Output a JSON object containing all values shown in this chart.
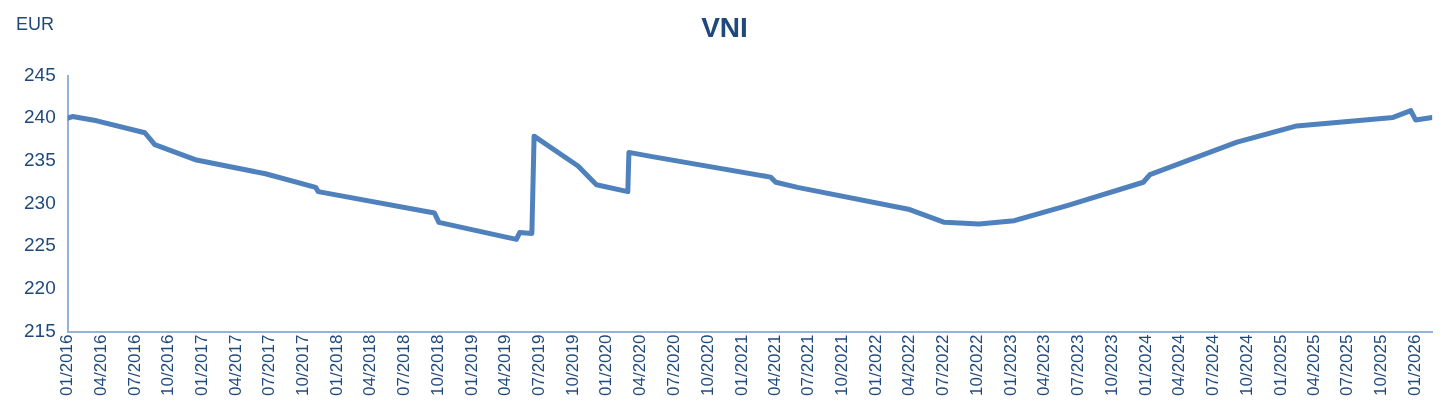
{
  "chart_data": {
    "type": "line",
    "title": "VNI",
    "ylabel": "EUR",
    "x": [
      "2016-01",
      "2016-01-14",
      "2016-03-20",
      "2016-07-28",
      "2016-08-24",
      "2016-12-15",
      "2017-06-20",
      "2017-11-03",
      "2017-11-10",
      "2018-09-21",
      "2018-10-03",
      "2019-05-01",
      "2019-05-10",
      "2019-06-12",
      "2019-06-18",
      "2019-10-15",
      "2019-12-04",
      "2020-02-27",
      "2020-03-01",
      "2020-05-03",
      "2021-03-20",
      "2021-04-03",
      "2021-06-01",
      "2022-04-01",
      "2022-07-04",
      "2022-10-06",
      "2023-01-09",
      "2023-06-04",
      "2023-12-25",
      "2024-01-12",
      "2024-09-04",
      "2025-02-13",
      "2025-11-01",
      "2025-12-19",
      "2026-01-01",
      "2026-02-15"
    ],
    "series": [
      {
        "color": "#4f81bd",
        "values": [
          240.0,
          240.2,
          239.7,
          238.3,
          236.9,
          235.1,
          233.5,
          231.9,
          231.4,
          228.9,
          227.8,
          225.8,
          226.6,
          226.5,
          237.9,
          234.4,
          232.2,
          231.4,
          236.0,
          235.5,
          233.1,
          232.5,
          231.9,
          229.3,
          227.8,
          227.6,
          228.0,
          229.8,
          232.5,
          233.4,
          237.2,
          239.1,
          240.1,
          240.9,
          239.8,
          240.1
        ]
      }
    ],
    "xlim": [
      "2016-01",
      "2026-02-15"
    ],
    "xticks": [
      {
        "value": "2016-01",
        "label": "01/2016"
      },
      {
        "value": "2016-04",
        "label": "04/2016"
      },
      {
        "value": "2016-07",
        "label": "07/2016"
      },
      {
        "value": "2016-10",
        "label": "10/2016"
      },
      {
        "value": "2017-01",
        "label": "01/2017"
      },
      {
        "value": "2017-04",
        "label": "04/2017"
      },
      {
        "value": "2017-07",
        "label": "07/2017"
      },
      {
        "value": "2017-10",
        "label": "10/2017"
      },
      {
        "value": "2018-01",
        "label": "01/2018"
      },
      {
        "value": "2018-04",
        "label": "04/2018"
      },
      {
        "value": "2018-07",
        "label": "07/2018"
      },
      {
        "value": "2018-10",
        "label": "10/2018"
      },
      {
        "value": "2019-01",
        "label": "01/2019"
      },
      {
        "value": "2019-04",
        "label": "04/2019"
      },
      {
        "value": "2019-07",
        "label": "07/2019"
      },
      {
        "value": "2019-10",
        "label": "10/2019"
      },
      {
        "value": "2020-01",
        "label": "01/2020"
      },
      {
        "value": "2020-04",
        "label": "04/2020"
      },
      {
        "value": "2020-07",
        "label": "07/2020"
      },
      {
        "value": "2020-10",
        "label": "10/2020"
      },
      {
        "value": "2021-01",
        "label": "01/2021"
      },
      {
        "value": "2021-04",
        "label": "04/2021"
      },
      {
        "value": "2021-07",
        "label": "07/2021"
      },
      {
        "value": "2021-10",
        "label": "10/2021"
      },
      {
        "value": "2022-01",
        "label": "01/2022"
      },
      {
        "value": "2022-04",
        "label": "04/2022"
      },
      {
        "value": "2022-07",
        "label": "07/2022"
      },
      {
        "value": "2022-10",
        "label": "10/2022"
      },
      {
        "value": "2023-01",
        "label": "01/2023"
      },
      {
        "value": "2023-04",
        "label": "04/2023"
      },
      {
        "value": "2023-07",
        "label": "07/2023"
      },
      {
        "value": "2023-10",
        "label": "10/2023"
      },
      {
        "value": "2024-01",
        "label": "01/2024"
      },
      {
        "value": "2024-04",
        "label": "04/2024"
      },
      {
        "value": "2024-07",
        "label": "07/2024"
      },
      {
        "value": "2024-10",
        "label": "10/2024"
      },
      {
        "value": "2025-01",
        "label": "01/2025"
      },
      {
        "value": "2025-04",
        "label": "04/2025"
      },
      {
        "value": "2025-07",
        "label": "07/2025"
      },
      {
        "value": "2025-10",
        "label": "10/2025"
      },
      {
        "value": "2026-01",
        "label": "01/2026"
      }
    ],
    "ylim": [
      215,
      245
    ],
    "yticks": [
      215,
      220,
      225,
      230,
      235,
      240,
      245
    ],
    "grid": false,
    "legend": false,
    "marker": "none",
    "line_style": "solid"
  }
}
